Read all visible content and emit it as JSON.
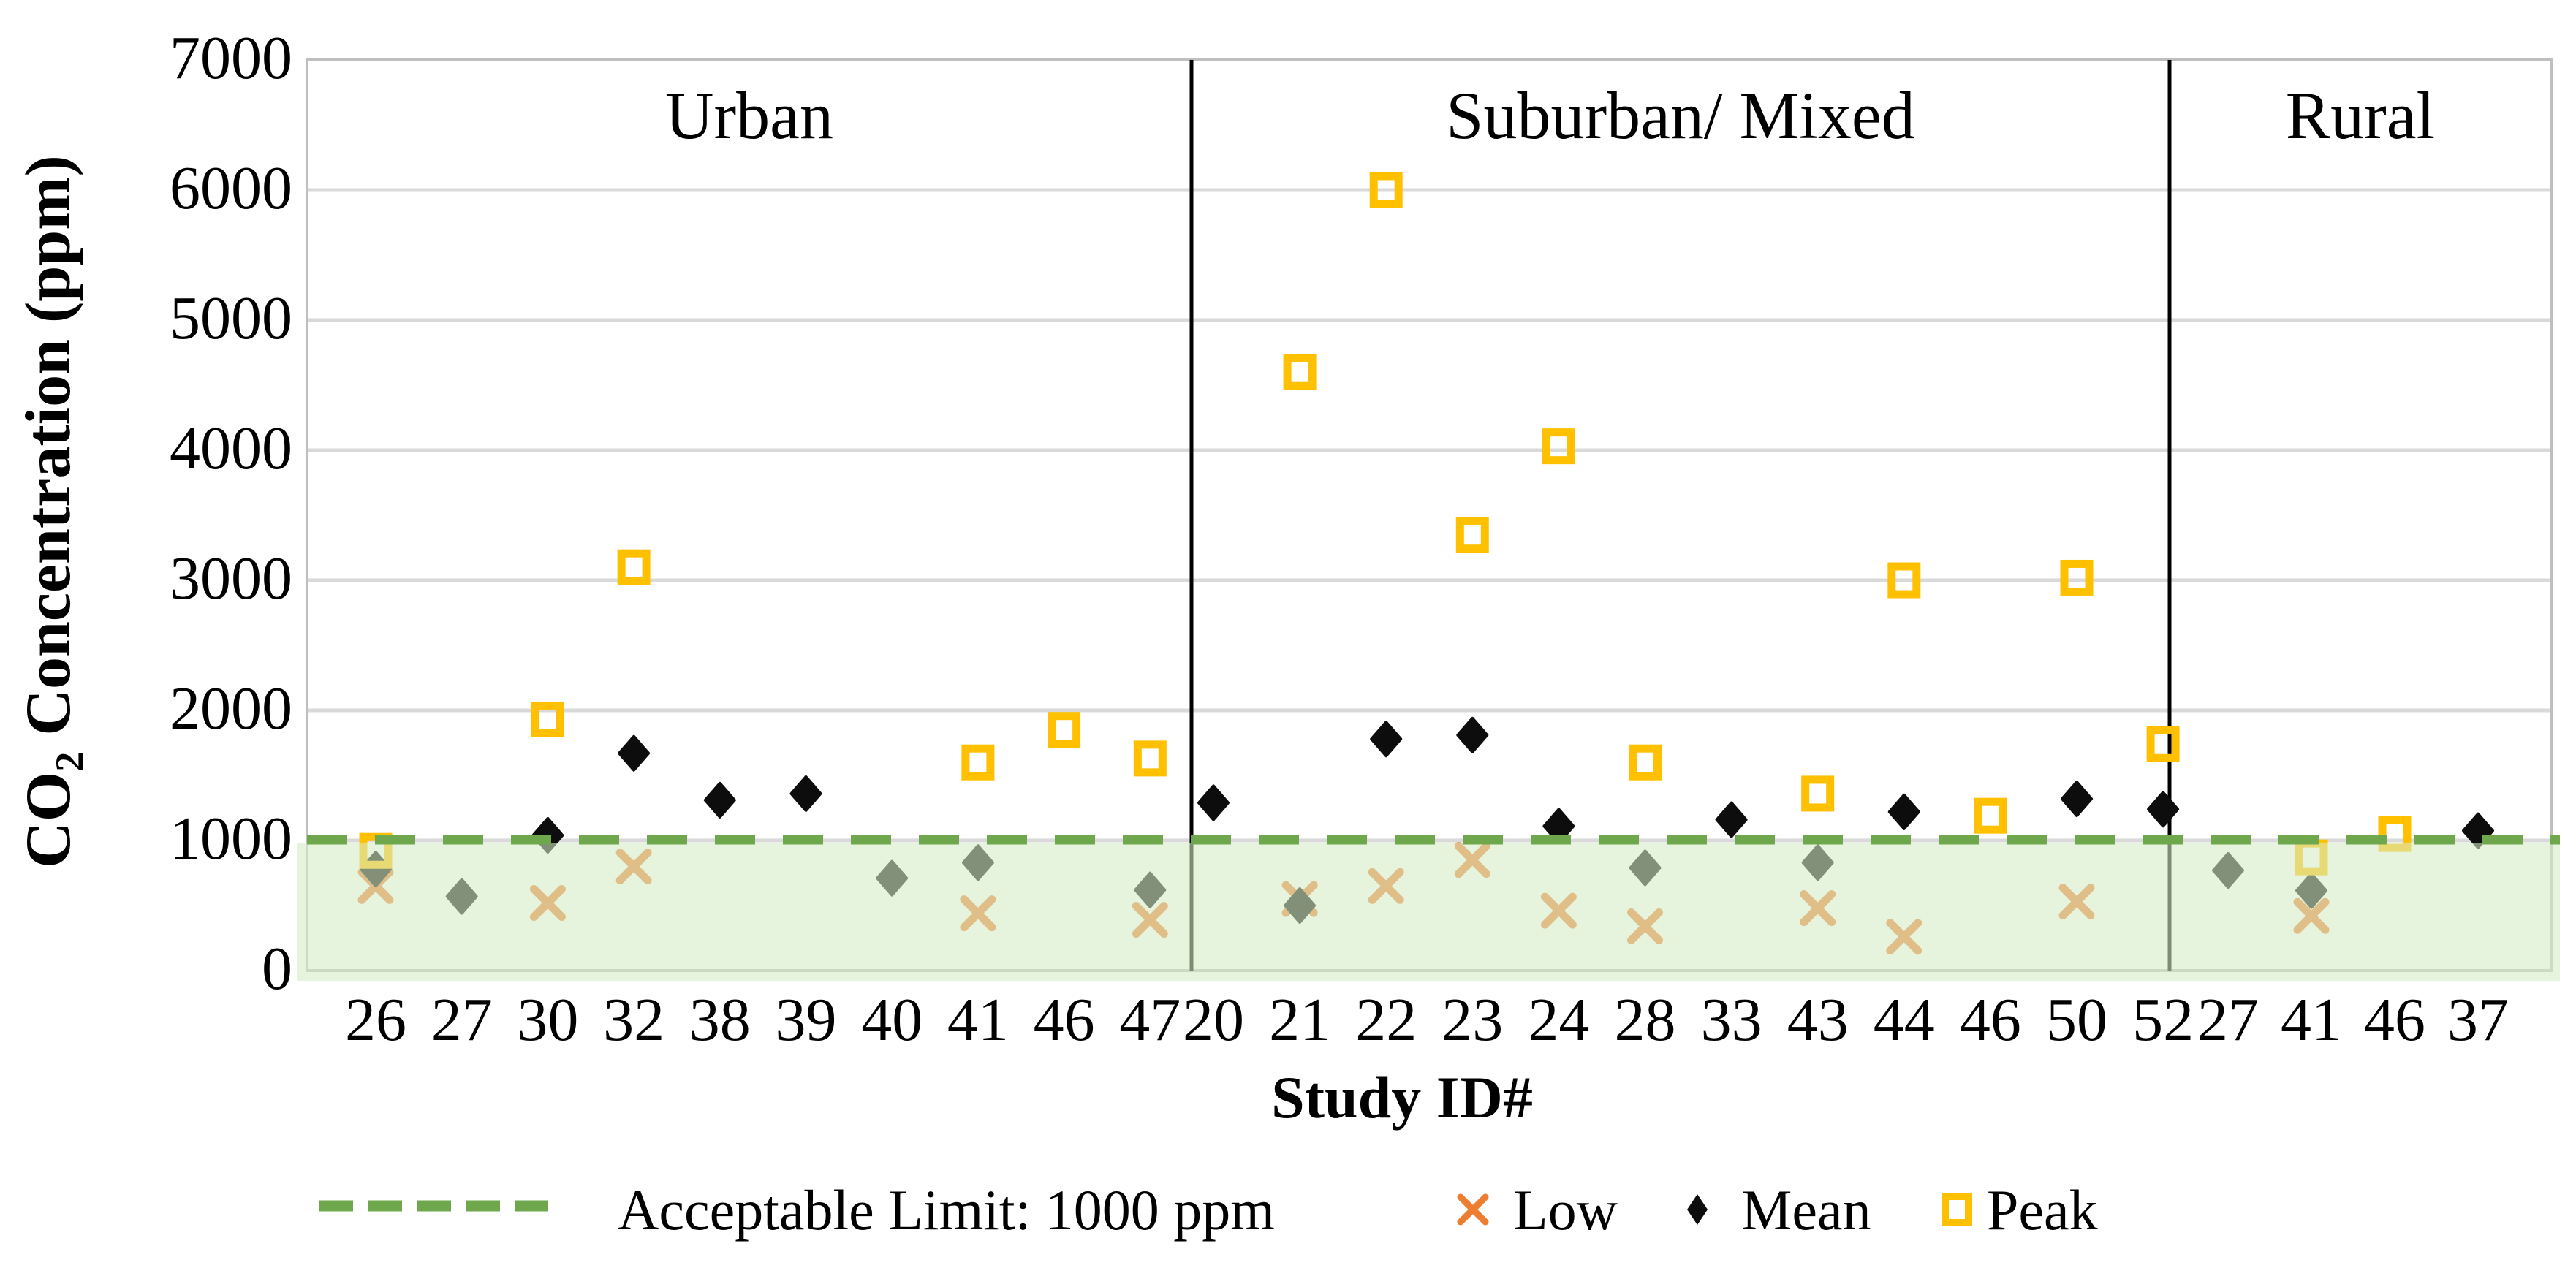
{
  "chart_data": {
    "type": "scatter",
    "title": "",
    "y_axis": {
      "title_co": "CO",
      "title_sub": "2",
      "title_rest": " Concentration (ppm)",
      "min": 0,
      "max": 7000,
      "ticks": [
        7000,
        6000,
        5000,
        4000,
        3000,
        2000,
        1000,
        0
      ],
      "grid": true
    },
    "x_axis": {
      "title": "Study ID#"
    },
    "acceptable_limit_ppm": 1000,
    "legend": {
      "limit_label": "Acceptable Limit: 1000 ppm",
      "low_label": "Low",
      "mean_label": "Mean",
      "peak_label": "Peak",
      "position": "bottom"
    },
    "colors": {
      "low": "#ED7D31",
      "mean": "#0D0D0D",
      "peak": "#FFC000",
      "limit_line": "#6FA84C",
      "band_fill_rgba": "rgba(214,236,197,0.59)",
      "gridline": "#D9D9D9",
      "plot_border": "#BFBFBF",
      "divider": "#000000"
    },
    "sections": [
      {
        "label": "Urban",
        "points": [
          {
            "id": "26",
            "low": 650,
            "mean": 780,
            "peak": 920
          },
          {
            "id": "27",
            "low": null,
            "mean": 570,
            "peak": null
          },
          {
            "id": "30",
            "low": 520,
            "mean": 1040,
            "peak": 1930
          },
          {
            "id": "32",
            "low": 800,
            "mean": 1670,
            "peak": 3100
          },
          {
            "id": "38",
            "low": null,
            "mean": 1310,
            "peak": null
          },
          {
            "id": "39",
            "low": null,
            "mean": 1360,
            "peak": null
          },
          {
            "id": "40",
            "low": null,
            "mean": 710,
            "peak": null
          },
          {
            "id": "41",
            "low": 440,
            "mean": 830,
            "peak": 1600
          },
          {
            "id": "46",
            "low": null,
            "mean": null,
            "peak": 1850
          },
          {
            "id": "47",
            "low": 390,
            "mean": 620,
            "peak": 1630
          }
        ]
      },
      {
        "label": "Suburban/ Mixed",
        "points": [
          {
            "id": "20",
            "low": null,
            "mean": 1290,
            "peak": null
          },
          {
            "id": "21",
            "low": 550,
            "mean": 500,
            "peak": 4600
          },
          {
            "id": "22",
            "low": 650,
            "mean": 1780,
            "peak": 6000
          },
          {
            "id": "23",
            "low": 850,
            "mean": 1810,
            "peak": 3350
          },
          {
            "id": "24",
            "low": 460,
            "mean": 1110,
            "peak": 4030
          },
          {
            "id": "28",
            "low": 340,
            "mean": 790,
            "peak": 1600
          },
          {
            "id": "33",
            "low": null,
            "mean": 1160,
            "peak": null
          },
          {
            "id": "43",
            "low": 480,
            "mean": 830,
            "peak": 1360
          },
          {
            "id": "44",
            "low": 260,
            "mean": 1220,
            "peak": 3000
          },
          {
            "id": "46",
            "low": null,
            "mean": null,
            "peak": 1190
          },
          {
            "id": "50",
            "low": 530,
            "mean": 1320,
            "peak": 3020
          },
          {
            "id": "52",
            "low": null,
            "mean": 1240,
            "peak": 1740
          }
        ]
      },
      {
        "label": "Rural",
        "points": [
          {
            "id": "27",
            "low": null,
            "mean": 770,
            "peak": null
          },
          {
            "id": "41",
            "low": 420,
            "mean": 615,
            "peak": 870
          },
          {
            "id": "46",
            "low": null,
            "mean": null,
            "peak": 1050
          },
          {
            "id": "37",
            "low": null,
            "mean": 1075,
            "peak": null
          }
        ]
      }
    ]
  }
}
